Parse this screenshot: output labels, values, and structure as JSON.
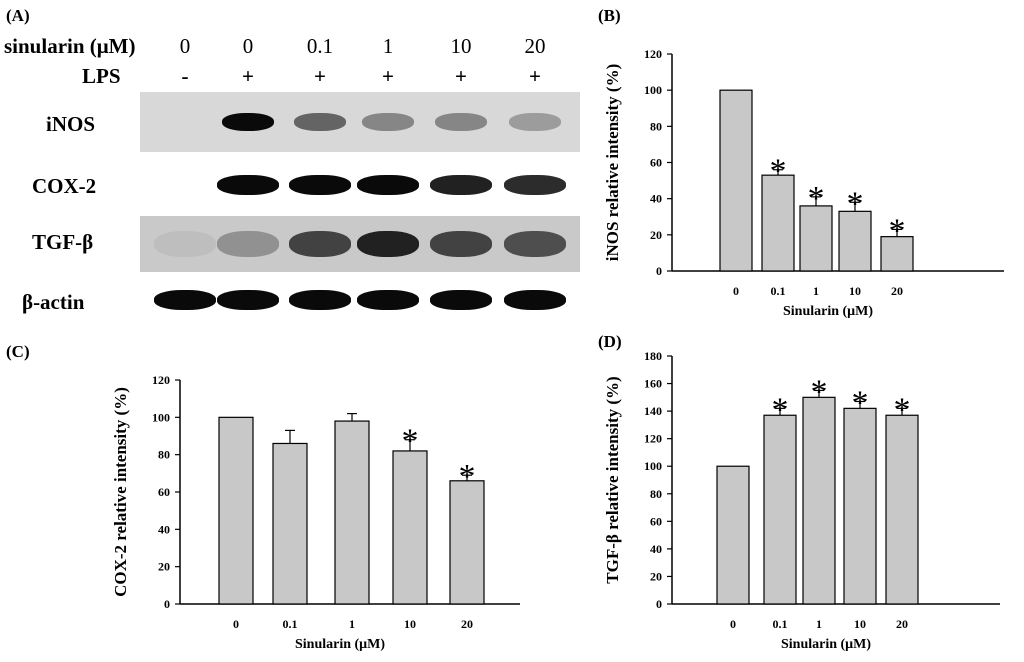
{
  "panels": {
    "a": "(A)",
    "b": "(B)",
    "c": "(C)",
    "d": "(D)"
  },
  "western_blot": {
    "row_sinularin_label": "sinularin (μM)",
    "row_lps_label": "LPS",
    "sinularin_values": [
      "0",
      "0",
      "0.1",
      "1",
      "10",
      "20"
    ],
    "lps_values": [
      "-",
      "+",
      "+",
      "+",
      "+",
      "+"
    ],
    "bands": [
      {
        "name": "iNOS",
        "intensity": [
          0.0,
          1.0,
          0.6,
          0.45,
          0.45,
          0.35
        ]
      },
      {
        "name": "COX-2",
        "intensity": [
          0.0,
          1.0,
          1.0,
          1.0,
          0.9,
          0.85
        ]
      },
      {
        "name": "TGF-β",
        "intensity": [
          0.2,
          0.4,
          0.75,
          0.9,
          0.75,
          0.7
        ]
      },
      {
        "name": "β-actin",
        "intensity": [
          1.0,
          1.0,
          1.0,
          1.0,
          1.0,
          1.0
        ]
      }
    ]
  },
  "chart_data": [
    {
      "panel": "B",
      "type": "bar",
      "categories": [
        "0",
        "0.1",
        "1",
        "10",
        "20"
      ],
      "values": [
        100,
        53,
        36,
        33,
        19
      ],
      "errors": [
        0,
        3,
        5,
        5,
        4
      ],
      "significant": [
        false,
        true,
        true,
        true,
        true
      ],
      "xlabel": "Sinularin (μM)",
      "ylabel": "iNOS relative intensity (%)",
      "ylim": [
        0,
        120
      ],
      "yticks": [
        0,
        20,
        40,
        60,
        80,
        100,
        120
      ],
      "bar_color": "#c8c8c8"
    },
    {
      "panel": "C",
      "type": "bar",
      "categories": [
        "0",
        "0.1",
        "1",
        "10",
        "20"
      ],
      "values": [
        100,
        86,
        98,
        82,
        66
      ],
      "errors": [
        0,
        7,
        4,
        6,
        3
      ],
      "significant": [
        false,
        false,
        false,
        true,
        true
      ],
      "xlabel": "Sinularin (μM)",
      "ylabel": "COX-2 relative intensity (%)",
      "ylim": [
        0,
        120
      ],
      "yticks": [
        0,
        20,
        40,
        60,
        80,
        100,
        120
      ],
      "bar_color": "#c8c8c8"
    },
    {
      "panel": "D",
      "type": "bar",
      "categories": [
        "0",
        "0.1",
        "1",
        "10",
        "20"
      ],
      "values": [
        100,
        137,
        150,
        142,
        137
      ],
      "errors": [
        0,
        5,
        5,
        5,
        5
      ],
      "significant": [
        false,
        true,
        true,
        true,
        true
      ],
      "xlabel": "Sinularin (μM)",
      "ylabel": "TGF-β relative intensity (%)",
      "ylim": [
        0,
        180
      ],
      "yticks": [
        0,
        20,
        40,
        60,
        80,
        100,
        120,
        140,
        160,
        180
      ],
      "bar_color": "#c8c8c8"
    }
  ]
}
